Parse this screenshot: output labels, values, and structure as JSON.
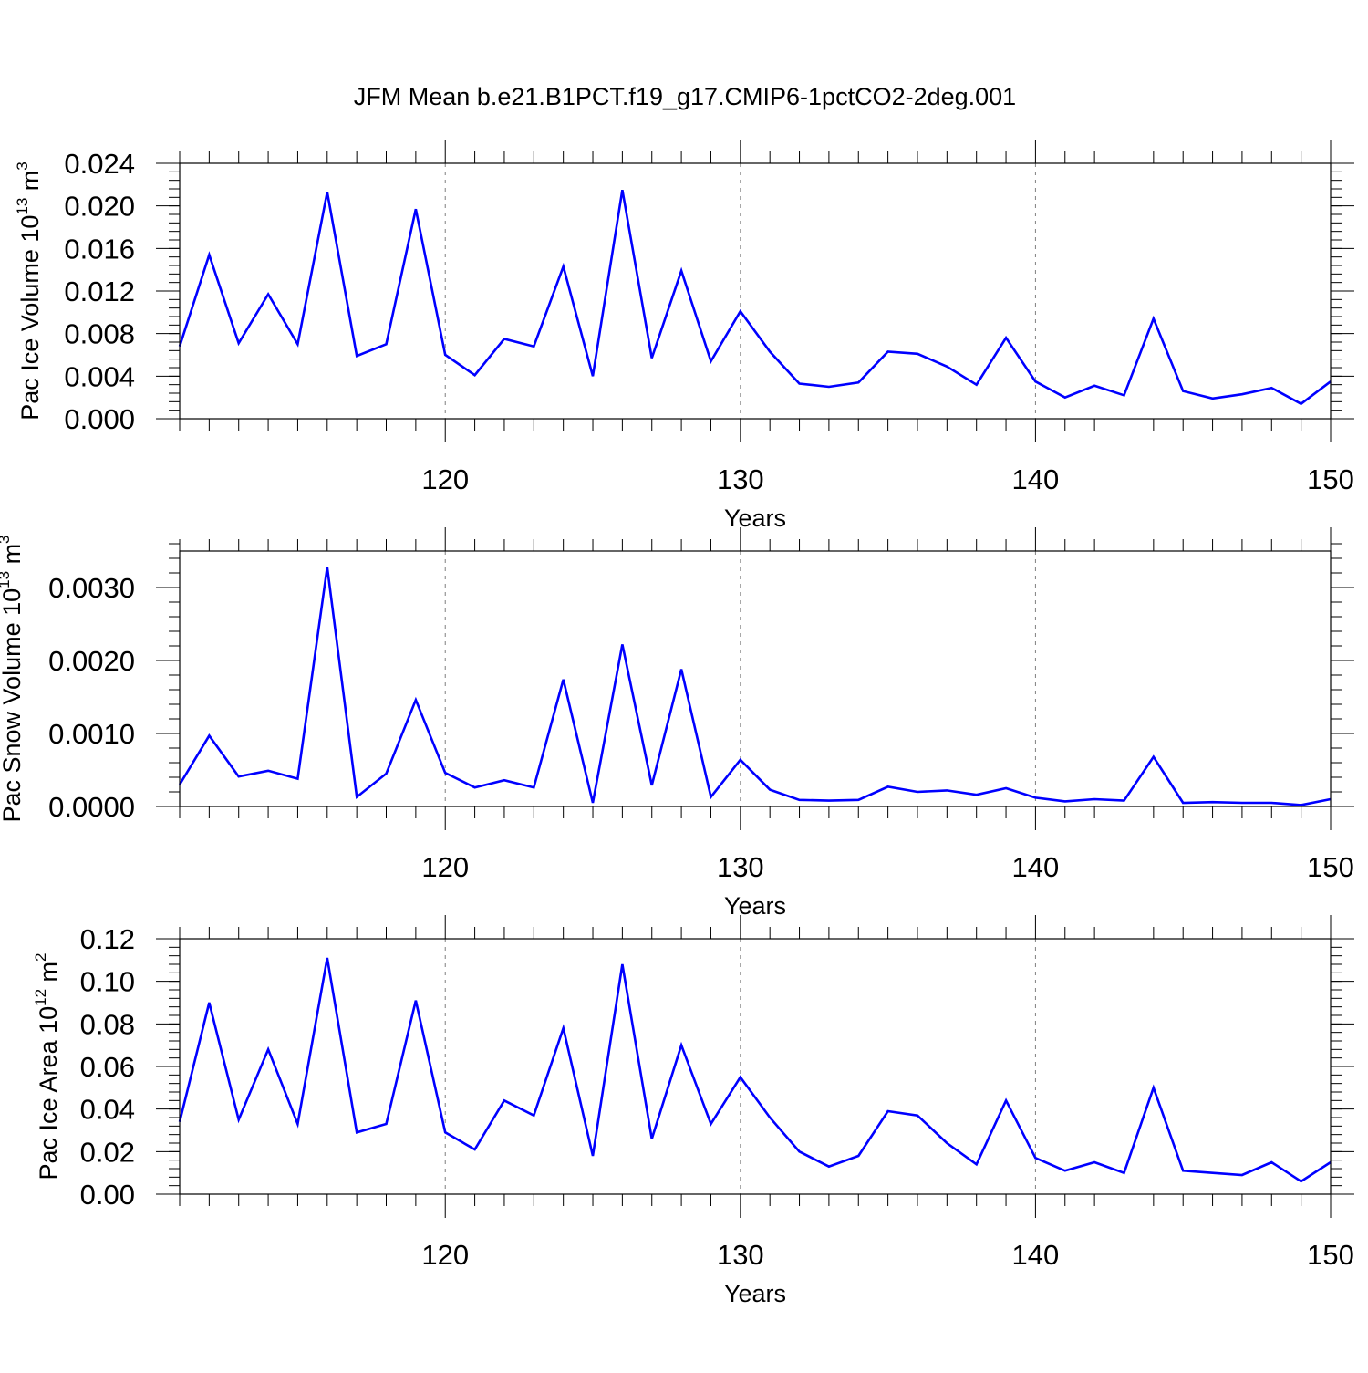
{
  "title": "JFM Mean b.e21.B1PCT.f19_g17.CMIP6-1pctCO2-2deg.001",
  "colors": {
    "series": "#0000ff",
    "axes": "#000000",
    "grid": "#808080",
    "background": "#ffffff"
  },
  "chart_data": [
    {
      "type": "line",
      "ylabel": {
        "text": "Pac Ice Volume 10",
        "sup": "13",
        "unit": " m",
        "unit_sup": "3"
      },
      "xlabel": "Years",
      "xlim": [
        111,
        150
      ],
      "ylim": [
        0,
        0.024
      ],
      "x_ticks": [
        120,
        130,
        140,
        150
      ],
      "y_ticks": [
        "0.000",
        "0.004",
        "0.008",
        "0.012",
        "0.016",
        "0.020",
        "0.024"
      ],
      "y_minor_step": 0.0008,
      "grid": "vertical dashed at major x ticks",
      "x": [
        111,
        112,
        113,
        114,
        115,
        116,
        117,
        118,
        119,
        120,
        121,
        122,
        123,
        124,
        125,
        126,
        127,
        128,
        129,
        130,
        131,
        132,
        133,
        134,
        135,
        136,
        137,
        138,
        139,
        140,
        141,
        142,
        143,
        144,
        145,
        146,
        147,
        148,
        149,
        150
      ],
      "values": [
        0.0068,
        0.0154,
        0.0071,
        0.0117,
        0.007,
        0.0213,
        0.0059,
        0.007,
        0.0197,
        0.006,
        0.0041,
        0.0075,
        0.0068,
        0.0143,
        0.004,
        0.0215,
        0.0057,
        0.0139,
        0.0054,
        0.0101,
        0.0063,
        0.0033,
        0.003,
        0.0034,
        0.0063,
        0.0061,
        0.0049,
        0.0032,
        0.0076,
        0.0035,
        0.002,
        0.0031,
        0.0022,
        0.0094,
        0.0026,
        0.0019,
        0.0023,
        0.0029,
        0.0014,
        0.0035
      ]
    },
    {
      "type": "line",
      "ylabel": {
        "text": "Pac Snow Volume 10",
        "sup": "13",
        "unit": " m",
        "unit_sup": "3"
      },
      "xlabel": "Years",
      "xlim": [
        111,
        150
      ],
      "ylim": [
        0,
        0.0035
      ],
      "x_ticks": [
        120,
        130,
        140,
        150
      ],
      "y_ticks": [
        "0.0000",
        "0.0010",
        "0.0020",
        "0.0030"
      ],
      "y_minor_step": 0.0002,
      "grid": "vertical dashed at major x ticks",
      "x": [
        111,
        112,
        113,
        114,
        115,
        116,
        117,
        118,
        119,
        120,
        121,
        122,
        123,
        124,
        125,
        126,
        127,
        128,
        129,
        130,
        131,
        132,
        133,
        134,
        135,
        136,
        137,
        138,
        139,
        140,
        141,
        142,
        143,
        144,
        145,
        146,
        147,
        148,
        149,
        150
      ],
      "values": [
        0.0003,
        0.00097,
        0.00041,
        0.00049,
        0.00038,
        0.00328,
        0.00013,
        0.00045,
        0.00146,
        0.00046,
        0.00026,
        0.00036,
        0.00026,
        0.00174,
        5e-05,
        0.00222,
        0.00029,
        0.00188,
        0.00013,
        0.00064,
        0.00023,
        9e-05,
        8e-05,
        9e-05,
        0.00027,
        0.0002,
        0.00022,
        0.00016,
        0.00025,
        0.00012,
        7e-05,
        0.0001,
        8e-05,
        0.00068,
        5e-05,
        6e-05,
        5e-05,
        5e-05,
        2e-05,
        0.0001
      ]
    },
    {
      "type": "line",
      "ylabel": {
        "text": "Pac Ice Area 10",
        "sup": "12",
        "unit": " m",
        "unit_sup": "2"
      },
      "xlabel": "Years",
      "xlim": [
        111,
        150
      ],
      "ylim": [
        0,
        0.12
      ],
      "x_ticks": [
        120,
        130,
        140,
        150
      ],
      "y_ticks": [
        "0.00",
        "0.02",
        "0.04",
        "0.06",
        "0.08",
        "0.10",
        "0.12"
      ],
      "y_minor_step": 0.004,
      "grid": "vertical dashed at major x ticks",
      "x": [
        111,
        112,
        113,
        114,
        115,
        116,
        117,
        118,
        119,
        120,
        121,
        122,
        123,
        124,
        125,
        126,
        127,
        128,
        129,
        130,
        131,
        132,
        133,
        134,
        135,
        136,
        137,
        138,
        139,
        140,
        141,
        142,
        143,
        144,
        145,
        146,
        147,
        148,
        149,
        150
      ],
      "values": [
        0.034,
        0.09,
        0.035,
        0.068,
        0.033,
        0.111,
        0.029,
        0.033,
        0.091,
        0.029,
        0.021,
        0.044,
        0.037,
        0.078,
        0.018,
        0.108,
        0.026,
        0.07,
        0.033,
        0.055,
        0.036,
        0.02,
        0.013,
        0.018,
        0.039,
        0.037,
        0.024,
        0.014,
        0.044,
        0.017,
        0.011,
        0.015,
        0.01,
        0.05,
        0.011,
        0.01,
        0.009,
        0.015,
        0.006,
        0.015
      ]
    }
  ]
}
